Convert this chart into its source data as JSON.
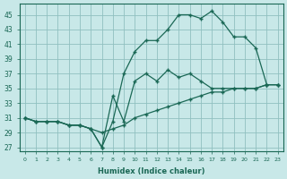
{
  "xlabel": "Humidex (Indice chaleur)",
  "bg_color": "#c8e8e8",
  "grid_color": "#90c0c0",
  "line_color": "#1a6855",
  "xlim": [
    -0.5,
    23.5
  ],
  "ylim": [
    26.5,
    46.5
  ],
  "yticks": [
    27,
    29,
    31,
    33,
    35,
    37,
    39,
    41,
    43,
    45
  ],
  "xticks": [
    0,
    1,
    2,
    3,
    4,
    5,
    6,
    7,
    8,
    9,
    10,
    11,
    12,
    13,
    14,
    15,
    16,
    17,
    18,
    19,
    20,
    21,
    22,
    23
  ],
  "line1_x": [
    0,
    1,
    2,
    3,
    4,
    5,
    6,
    7,
    8,
    9,
    10,
    11,
    12,
    13,
    14,
    15,
    16,
    17,
    18,
    19,
    20,
    21,
    22,
    23
  ],
  "line1_y": [
    31.0,
    30.5,
    30.5,
    30.5,
    30.0,
    30.0,
    29.5,
    29.0,
    29.5,
    30.0,
    31.0,
    31.5,
    32.0,
    32.5,
    33.0,
    33.5,
    34.0,
    34.5,
    34.5,
    35.0,
    35.0,
    35.0,
    35.5,
    35.5
  ],
  "line2_x": [
    0,
    1,
    2,
    3,
    4,
    5,
    6,
    7,
    8,
    9,
    10,
    11,
    12,
    13,
    14,
    15,
    16,
    17,
    18,
    19,
    20,
    21,
    22,
    23
  ],
  "line2_y": [
    31.0,
    30.5,
    30.5,
    30.5,
    30.0,
    30.0,
    29.5,
    27.0,
    34.0,
    30.5,
    36.0,
    37.0,
    36.0,
    37.5,
    36.5,
    37.0,
    36.0,
    35.0,
    35.0,
    35.0,
    35.0,
    35.0,
    35.5,
    35.5
  ],
  "line3_x": [
    0,
    1,
    2,
    3,
    4,
    5,
    6,
    7,
    8,
    9,
    10,
    11,
    12,
    13,
    14,
    15,
    16,
    17,
    18,
    19,
    20,
    21,
    22,
    23
  ],
  "line3_y": [
    31.0,
    30.5,
    30.5,
    30.5,
    30.0,
    30.0,
    29.5,
    27.0,
    30.5,
    37.0,
    40.0,
    41.5,
    41.5,
    43.0,
    45.0,
    45.0,
    44.5,
    45.5,
    44.0,
    42.0,
    42.0,
    40.5,
    35.5,
    35.5
  ]
}
